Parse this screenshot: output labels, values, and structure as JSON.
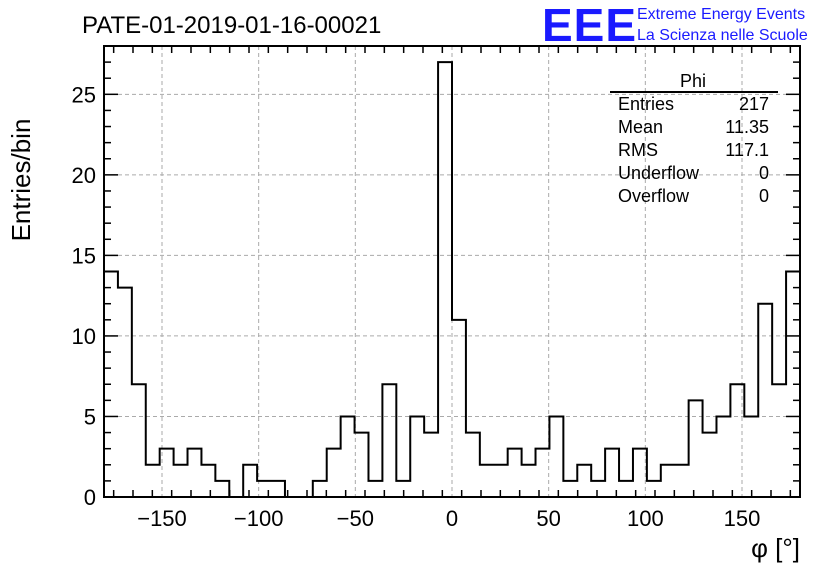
{
  "chart_data": {
    "type": "histogram",
    "title": "PATE-01-2019-01-16-00021",
    "xlabel": "φ [°]",
    "ylabel": "Entries/bin",
    "xlim": [
      -180,
      180
    ],
    "ylim": [
      0,
      28
    ],
    "bin_width": 7.2,
    "grid": true,
    "x_ticks": [
      -150,
      -100,
      -50,
      0,
      50,
      100,
      150
    ],
    "y_ticks": [
      0,
      5,
      10,
      15,
      20,
      25
    ],
    "values": [
      14,
      13,
      7,
      2,
      3,
      2,
      3,
      2,
      1,
      0,
      2,
      1,
      1,
      0,
      0,
      1,
      3,
      5,
      4,
      1,
      7,
      1,
      5,
      4,
      27,
      11,
      4,
      2,
      2,
      3,
      2,
      3,
      5,
      1,
      2,
      1,
      3,
      1,
      3,
      1,
      2,
      2,
      6,
      4,
      5,
      7,
      5,
      12,
      7,
      14
    ]
  },
  "stats": {
    "title": "Phi",
    "rows": [
      {
        "label": "Entries",
        "value": "217"
      },
      {
        "label": "Mean",
        "value": "11.35"
      },
      {
        "label": "RMS",
        "value": "117.1"
      },
      {
        "label": "Underflow",
        "value": "0"
      },
      {
        "label": "Overflow",
        "value": "0"
      }
    ]
  },
  "logo": {
    "mark": "EEE",
    "line1": "Extreme Energy Events",
    "line2": "La Scienza nelle Scuole",
    "color": "#1a1aff"
  }
}
